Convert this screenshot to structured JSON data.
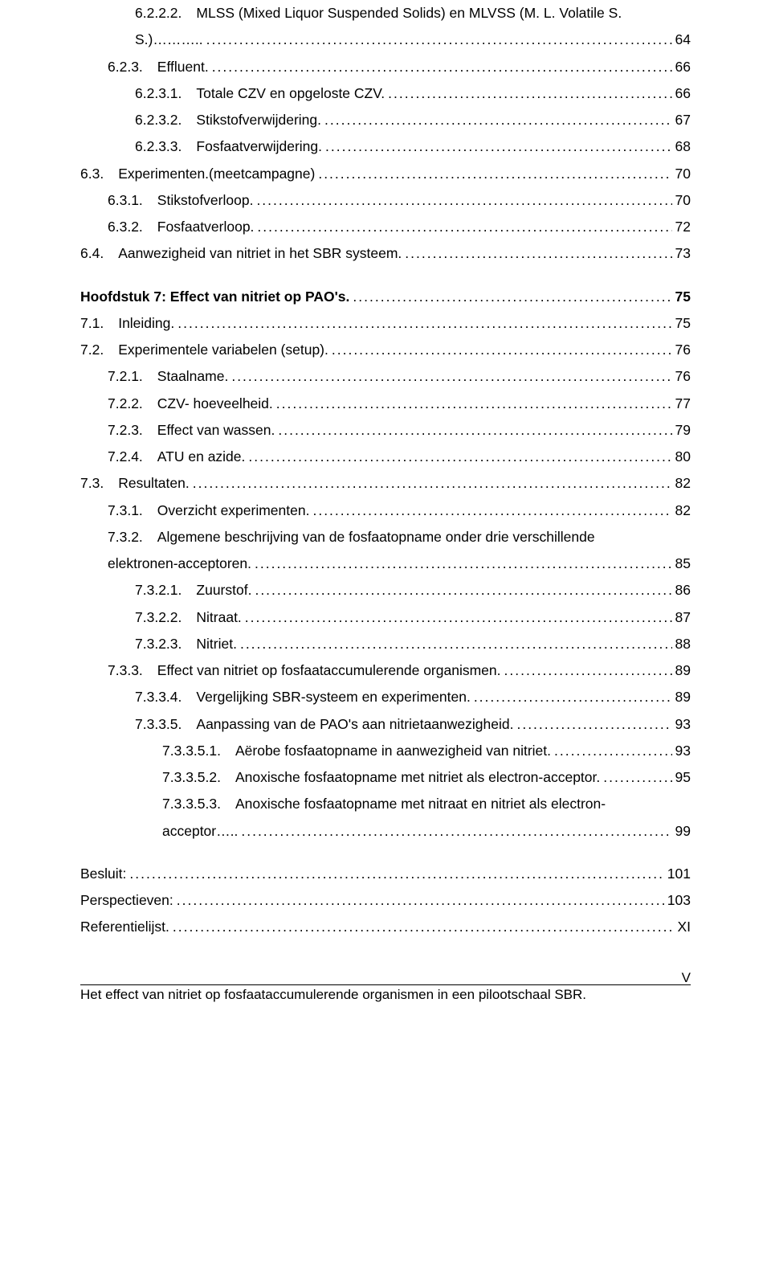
{
  "toc": [
    {
      "indent": 2,
      "num": "6.2.2.2.",
      "label": "MLSS (Mixed Liquor Suspended Solids) en MLVSS (M. L. Volatile S.",
      "page": "",
      "bold": false,
      "noLeader": true
    },
    {
      "indent": 2,
      "num": "",
      "label": "S.)………..",
      "page": "64",
      "bold": false
    },
    {
      "indent": 1,
      "num": "6.2.3.",
      "label": "Effluent.",
      "page": "66",
      "bold": false
    },
    {
      "indent": 2,
      "num": "6.2.3.1.",
      "label": "Totale CZV en opgeloste CZV.",
      "page": "66",
      "bold": false
    },
    {
      "indent": 2,
      "num": "6.2.3.2.",
      "label": "Stikstofverwijdering.",
      "page": "67",
      "bold": false
    },
    {
      "indent": 2,
      "num": "6.2.3.3.",
      "label": "Fosfaatverwijdering.",
      "page": "68",
      "bold": false
    },
    {
      "indent": 0,
      "num": "6.3.",
      "label": "Experimenten.(meetcampagne)",
      "page": "70",
      "bold": false
    },
    {
      "indent": 1,
      "num": "6.3.1.",
      "label": "Stikstofverloop.",
      "page": "70",
      "bold": false
    },
    {
      "indent": 1,
      "num": "6.3.2.",
      "label": "Fosfaatverloop.",
      "page": "72",
      "bold": false
    },
    {
      "indent": 0,
      "num": "6.4.",
      "label": "Aanwezigheid van nitriet in het SBR systeem.",
      "page": "73",
      "bold": false
    },
    {
      "spacer": true
    },
    {
      "indent": 0,
      "num": "",
      "label": "Hoofdstuk 7: Effect van nitriet op PAO's.",
      "page": "75",
      "bold": true
    },
    {
      "indent": 0,
      "num": "7.1.",
      "label": "Inleiding.",
      "page": "75",
      "bold": false
    },
    {
      "indent": 0,
      "num": "7.2.",
      "label": "Experimentele variabelen (setup).",
      "page": "76",
      "bold": false
    },
    {
      "indent": 1,
      "num": "7.2.1.",
      "label": "Staalname.",
      "page": "76",
      "bold": false
    },
    {
      "indent": 1,
      "num": "7.2.2.",
      "label": "CZV- hoeveelheid.",
      "page": "77",
      "bold": false
    },
    {
      "indent": 1,
      "num": "7.2.3.",
      "label": "Effect van wassen.",
      "page": "79",
      "bold": false
    },
    {
      "indent": 1,
      "num": "7.2.4.",
      "label": "ATU en azide.",
      "page": "80",
      "bold": false
    },
    {
      "indent": 0,
      "num": "7.3.",
      "label": "Resultaten.",
      "page": "82",
      "bold": false
    },
    {
      "indent": 1,
      "num": "7.3.1.",
      "label": "Overzicht experimenten.",
      "page": "82",
      "bold": false
    },
    {
      "indent": 1,
      "num": "7.3.2.",
      "label": "Algemene beschrijving van de fosfaatopname onder drie verschillende",
      "page": "",
      "bold": false,
      "noLeader": true
    },
    {
      "indent": 1,
      "num": "",
      "label": "elektronen-acceptoren.",
      "page": "85",
      "bold": false
    },
    {
      "indent": 2,
      "num": "7.3.2.1.",
      "label": "Zuurstof.",
      "page": "86",
      "bold": false
    },
    {
      "indent": 2,
      "num": "7.3.2.2.",
      "label": "Nitraat.",
      "page": "87",
      "bold": false
    },
    {
      "indent": 2,
      "num": "7.3.2.3.",
      "label": "Nitriet.",
      "page": "88",
      "bold": false
    },
    {
      "indent": 1,
      "num": "7.3.3.",
      "label": "Effect van nitriet op fosfaataccumulerende organismen.",
      "page": "89",
      "bold": false
    },
    {
      "indent": 2,
      "num": "7.3.3.4.",
      "label": "Vergelijking SBR-systeem en experimenten.",
      "page": "89",
      "bold": false
    },
    {
      "indent": 2,
      "num": "7.3.3.5.",
      "label": "Aanpassing van de PAO's aan nitrietaanwezigheid.",
      "page": "93",
      "bold": false
    },
    {
      "indent": 3,
      "num": "7.3.3.5.1.",
      "label": "Aërobe fosfaatopname in aanwezigheid van nitriet.",
      "page": "93",
      "bold": false
    },
    {
      "indent": 3,
      "num": "7.3.3.5.2.",
      "label": "Anoxische fosfaatopname met nitriet als electron-acceptor.",
      "page": "95",
      "bold": false
    },
    {
      "indent": 3,
      "num": "7.3.3.5.3.",
      "label": "Anoxische fosfaatopname met nitraat en nitriet als electron-",
      "page": "",
      "bold": false,
      "noLeader": true
    },
    {
      "indent": 3,
      "num": "",
      "label": "acceptor…..",
      "page": "99",
      "bold": false
    },
    {
      "spacer": true
    },
    {
      "indent": 0,
      "num": "",
      "label": "Besluit:",
      "page": "101",
      "bold": false
    },
    {
      "indent": 0,
      "num": "",
      "label": "Perspectieven:",
      "page": "103",
      "bold": false
    },
    {
      "indent": 0,
      "num": "",
      "label": "Referentielijst.",
      "page": "XI",
      "bold": false
    }
  ],
  "footer": {
    "pageNumber": "V",
    "text": "Het effect van nitriet op fosfaataccumulerende organismen in een pilootschaal SBR."
  }
}
